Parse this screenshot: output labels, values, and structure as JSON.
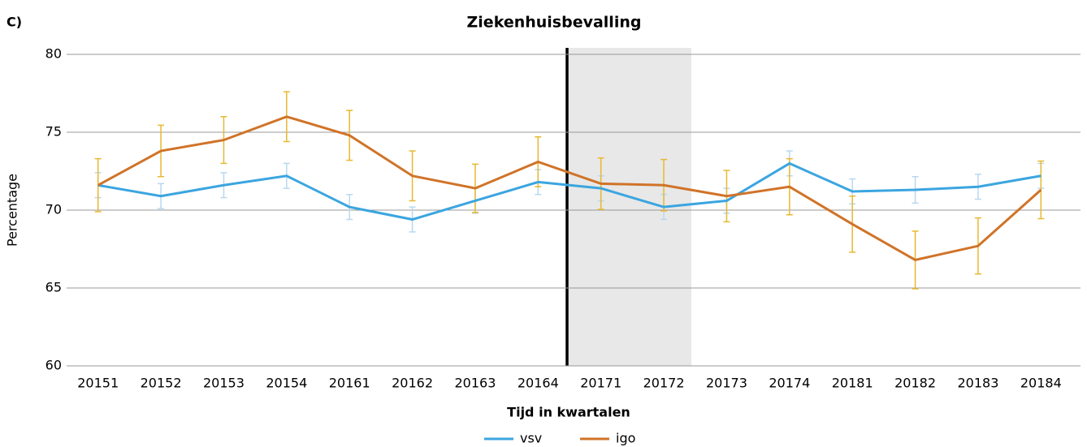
{
  "chart_data": {
    "type": "line",
    "panel_label": "C)",
    "title": "Ziekenhuisbevalling",
    "x_label": "Tijd in kwartalen",
    "y_label": "Percentage",
    "categories": [
      "20151",
      "20152",
      "20153",
      "20154",
      "20161",
      "20162",
      "20163",
      "20164",
      "20171",
      "20172",
      "20173",
      "20174",
      "20181",
      "20182",
      "20183",
      "20184"
    ],
    "series": [
      {
        "name": "vsv",
        "color": "#3ba5e0",
        "error_color": "#b8d8f0",
        "values": [
          71.6,
          70.9,
          71.6,
          72.2,
          70.2,
          69.4,
          70.6,
          71.8,
          71.4,
          70.2,
          70.6,
          73.0,
          71.2,
          71.3,
          71.5,
          72.2
        ],
        "errors": [
          0.8,
          0.8,
          0.8,
          0.8,
          0.8,
          0.8,
          0.8,
          0.8,
          0.8,
          0.8,
          0.8,
          0.8,
          0.8,
          0.85,
          0.8,
          0.8
        ]
      },
      {
        "name": "igo",
        "color": "#d07328",
        "error_color": "#e8b830",
        "values": [
          71.6,
          73.8,
          74.5,
          76.0,
          74.8,
          72.2,
          71.4,
          73.1,
          71.7,
          71.6,
          70.9,
          71.5,
          69.1,
          66.8,
          67.7,
          71.3
        ],
        "errors": [
          1.7,
          1.65,
          1.5,
          1.6,
          1.6,
          1.6,
          1.55,
          1.6,
          1.65,
          1.65,
          1.65,
          1.8,
          1.8,
          1.85,
          1.8,
          1.85
        ]
      }
    ],
    "ylim": [
      60,
      80
    ],
    "yticks": [
      60,
      65,
      70,
      75,
      80
    ],
    "grid": true,
    "legend": "bottom"
  }
}
